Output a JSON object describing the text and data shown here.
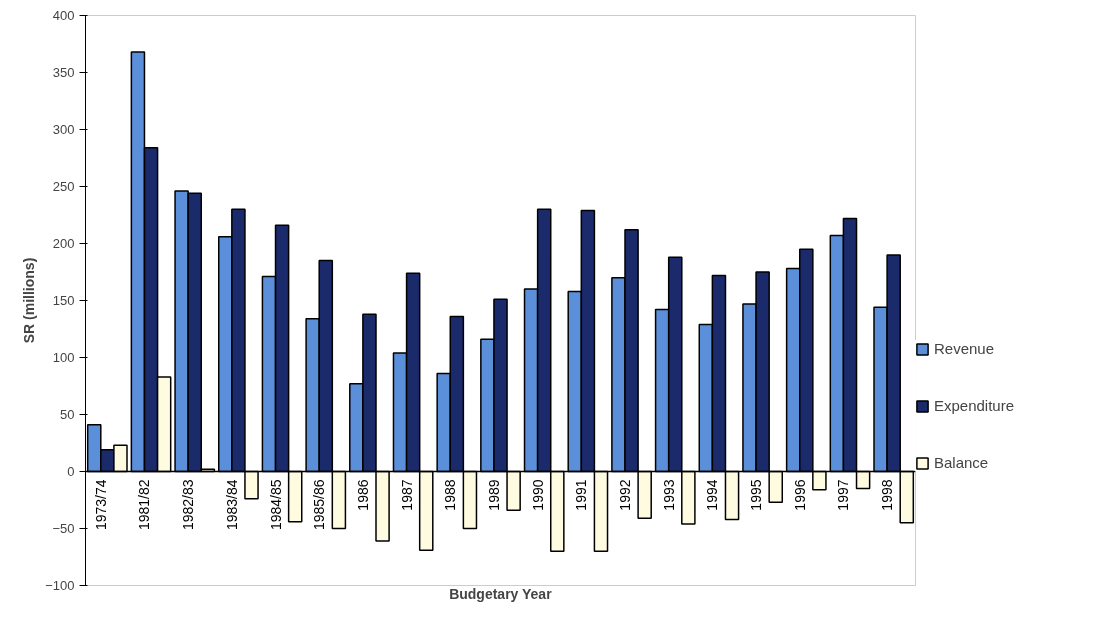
{
  "chart_data": {
    "type": "bar",
    "xlabel": "Budgetary Year",
    "ylabel": "SR (millions)",
    "categories": [
      "1973/74",
      "1981/82",
      "1982/83",
      "1983/84",
      "1984/85",
      "1985/86",
      "1986",
      "1987",
      "1988",
      "1989",
      "1990",
      "1991",
      "1992",
      "1993",
      "1994",
      "1995",
      "1996",
      "1997",
      "1998"
    ],
    "series": [
      {
        "name": "Revenue",
        "color": "#5b8fd9",
        "values": [
          41,
          368,
          246,
          206,
          171,
          134,
          77,
          104,
          86,
          116,
          160,
          158,
          170,
          142,
          129,
          147,
          178,
          207,
          144
        ]
      },
      {
        "name": "Expenditure",
        "color": "#1a2a6b",
        "values": [
          19,
          284,
          244,
          230,
          216,
          185,
          138,
          174,
          136,
          151,
          230,
          229,
          212,
          188,
          172,
          175,
          195,
          222,
          190
        ]
      },
      {
        "name": "Balance",
        "color": "#fffbe0",
        "values": [
          23,
          83,
          2,
          -24,
          -44,
          -50,
          -61,
          -69,
          -50,
          -34,
          -70,
          -70,
          -41,
          -46,
          -42,
          -27,
          -16,
          -15,
          -45
        ]
      }
    ],
    "ylim": [
      -100,
      400
    ],
    "yticks": [
      -100,
      -50,
      0,
      50,
      100,
      150,
      200,
      250,
      300,
      350,
      400
    ],
    "grid": false,
    "legend": "right"
  }
}
